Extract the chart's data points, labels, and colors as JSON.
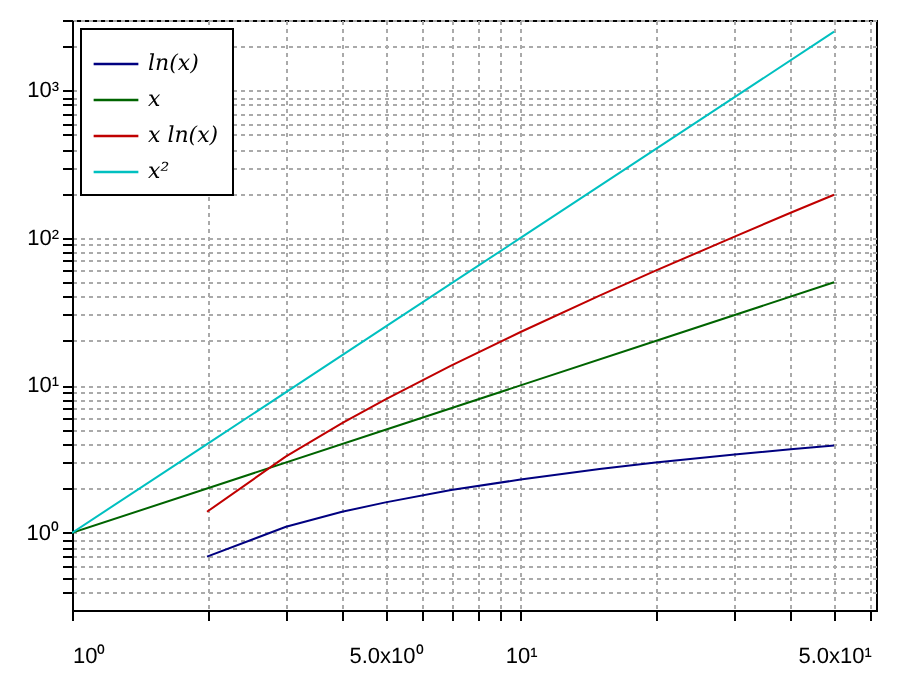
{
  "chart_data": {
    "type": "line",
    "log": "xy",
    "grid": true,
    "legend": "top left",
    "line_style": "solid",
    "xlim": [
      1,
      62
    ],
    "ylim": [
      0.3,
      3000
    ],
    "xticks": [
      {
        "value": 1,
        "label": "10⁰"
      },
      {
        "value": 2,
        "label": null
      },
      {
        "value": 3,
        "label": null
      },
      {
        "value": 4,
        "label": null
      },
      {
        "value": 5,
        "label": "5.0x10⁰"
      },
      {
        "value": 6,
        "label": null
      },
      {
        "value": 7,
        "label": null
      },
      {
        "value": 8,
        "label": null
      },
      {
        "value": 9,
        "label": null
      },
      {
        "value": 10,
        "label": "10¹"
      },
      {
        "value": 20,
        "label": null
      },
      {
        "value": 30,
        "label": null
      },
      {
        "value": 40,
        "label": null
      },
      {
        "value": 50,
        "label": "5.0x10¹"
      },
      {
        "value": 60,
        "label": null
      }
    ],
    "yticks": [
      {
        "value": 0.4,
        "label": null
      },
      {
        "value": 0.5,
        "label": null
      },
      {
        "value": 0.6,
        "label": null
      },
      {
        "value": 0.7,
        "label": null
      },
      {
        "value": 0.8,
        "label": null
      },
      {
        "value": 0.9,
        "label": null
      },
      {
        "value": 1,
        "label": "10⁰"
      },
      {
        "value": 2,
        "label": null
      },
      {
        "value": 3,
        "label": null
      },
      {
        "value": 4,
        "label": null
      },
      {
        "value": 5,
        "label": null
      },
      {
        "value": 6,
        "label": null
      },
      {
        "value": 7,
        "label": null
      },
      {
        "value": 8,
        "label": null
      },
      {
        "value": 9,
        "label": null
      },
      {
        "value": 10,
        "label": "10¹"
      },
      {
        "value": 20,
        "label": null
      },
      {
        "value": 30,
        "label": null
      },
      {
        "value": 40,
        "label": null
      },
      {
        "value": 50,
        "label": null
      },
      {
        "value": 60,
        "label": null
      },
      {
        "value": 70,
        "label": null
      },
      {
        "value": 80,
        "label": null
      },
      {
        "value": 90,
        "label": null
      },
      {
        "value": 100,
        "label": "10²"
      },
      {
        "value": 200,
        "label": null
      },
      {
        "value": 300,
        "label": null
      },
      {
        "value": 400,
        "label": null
      },
      {
        "value": 500,
        "label": null
      },
      {
        "value": 600,
        "label": null
      },
      {
        "value": 700,
        "label": null
      },
      {
        "value": 800,
        "label": null
      },
      {
        "value": 900,
        "label": null
      },
      {
        "value": 1000,
        "label": "10³"
      },
      {
        "value": 2000,
        "label": null
      },
      {
        "value": 3000,
        "label": null
      }
    ],
    "series": [
      {
        "name": "ln(x)",
        "color": "#000080",
        "x": [
          2,
          3,
          4,
          5,
          7,
          10,
          15,
          20,
          30,
          40,
          50
        ],
        "values": [
          0.69,
          1.1,
          1.39,
          1.61,
          1.95,
          2.3,
          2.71,
          3.0,
          3.4,
          3.69,
          3.91
        ]
      },
      {
        "name": "x",
        "color": "#006400",
        "x": [
          1,
          2,
          5,
          10,
          20,
          50
        ],
        "values": [
          1,
          2,
          5,
          10,
          20,
          50
        ]
      },
      {
        "name": "x ln(x)",
        "color": "#c00000",
        "x": [
          2,
          3,
          4,
          5,
          7,
          10,
          15,
          20,
          30,
          40,
          50
        ],
        "values": [
          1.39,
          3.3,
          5.55,
          8.05,
          13.6,
          23.0,
          40.6,
          59.9,
          102,
          148,
          196
        ]
      },
      {
        "name": "x²",
        "color": "#00c0c0",
        "x": [
          1,
          2,
          5,
          10,
          20,
          50
        ],
        "values": [
          1,
          4,
          25,
          100,
          400,
          2500
        ]
      }
    ]
  }
}
